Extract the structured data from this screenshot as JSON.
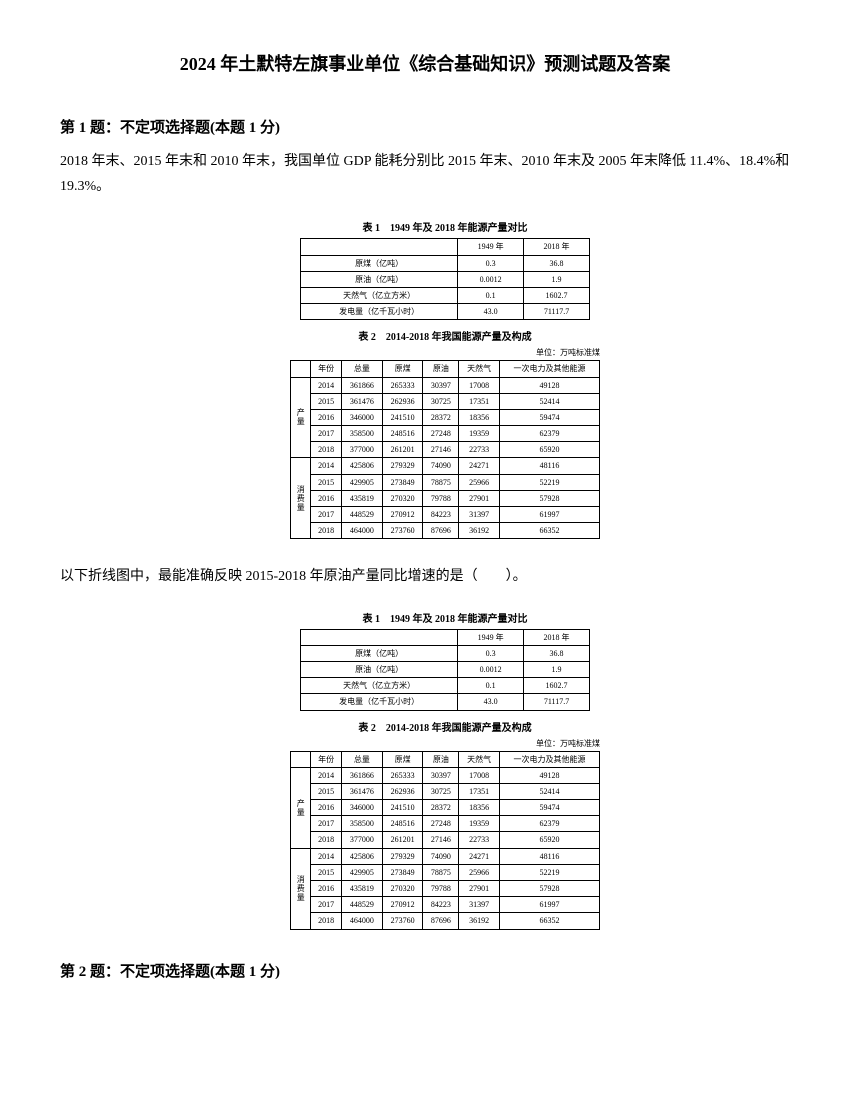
{
  "doc_title": "2024 年土默特左旗事业单位《综合基础知识》预测试题及答案",
  "q1": {
    "header": "第 1 题：不定项选择题(本题 1 分)",
    "paragraph1": "2018 年末、2015 年末和 2010 年末，我国单位 GDP 能耗分别比 2015 年末、2010 年末及 2005 年末降低 11.4%、18.4%和 19.3%。",
    "paragraph2": "以下折线图中，最能准确反映 2015-2018 年原油产量同比增速的是（　　）。"
  },
  "table1": {
    "title": "表 1　1949 年及 2018 年能源产量对比",
    "col1": "1949 年",
    "col2": "2018 年",
    "rows": [
      {
        "label": "原煤（亿吨）",
        "v1": "0.3",
        "v2": "36.8"
      },
      {
        "label": "原油（亿吨）",
        "v1": "0.0012",
        "v2": "1.9"
      },
      {
        "label": "天然气（亿立方米）",
        "v1": "0.1",
        "v2": "1602.7"
      },
      {
        "label": "发电量（亿千瓦小时）",
        "v1": "43.0",
        "v2": "71117.7"
      }
    ]
  },
  "table2": {
    "title": "表 2　2014-2018 年我国能源产量及构成",
    "unit": "单位：万吨标准煤",
    "headers": [
      "年份",
      "总量",
      "原煤",
      "原油",
      "天然气",
      "一次电力及其他能源"
    ],
    "group1_label": "产量",
    "group1": [
      [
        "2014",
        "361866",
        "265333",
        "30397",
        "17008",
        "49128"
      ],
      [
        "2015",
        "361476",
        "262936",
        "30725",
        "17351",
        "52414"
      ],
      [
        "2016",
        "346000",
        "241510",
        "28372",
        "18356",
        "59474"
      ],
      [
        "2017",
        "358500",
        "248516",
        "27248",
        "19359",
        "62379"
      ],
      [
        "2018",
        "377000",
        "261201",
        "27146",
        "22733",
        "65920"
      ]
    ],
    "group2_label": "消费量",
    "group2": [
      [
        "2014",
        "425806",
        "279329",
        "74090",
        "24271",
        "48116"
      ],
      [
        "2015",
        "429905",
        "273849",
        "78875",
        "25966",
        "52219"
      ],
      [
        "2016",
        "435819",
        "270320",
        "79788",
        "27901",
        "57928"
      ],
      [
        "2017",
        "448529",
        "270912",
        "84223",
        "31397",
        "61997"
      ],
      [
        "2018",
        "464000",
        "273760",
        "87696",
        "36192",
        "66352"
      ]
    ]
  },
  "q2": {
    "header": "第 2 题：不定项选择题(本题 1 分)"
  }
}
